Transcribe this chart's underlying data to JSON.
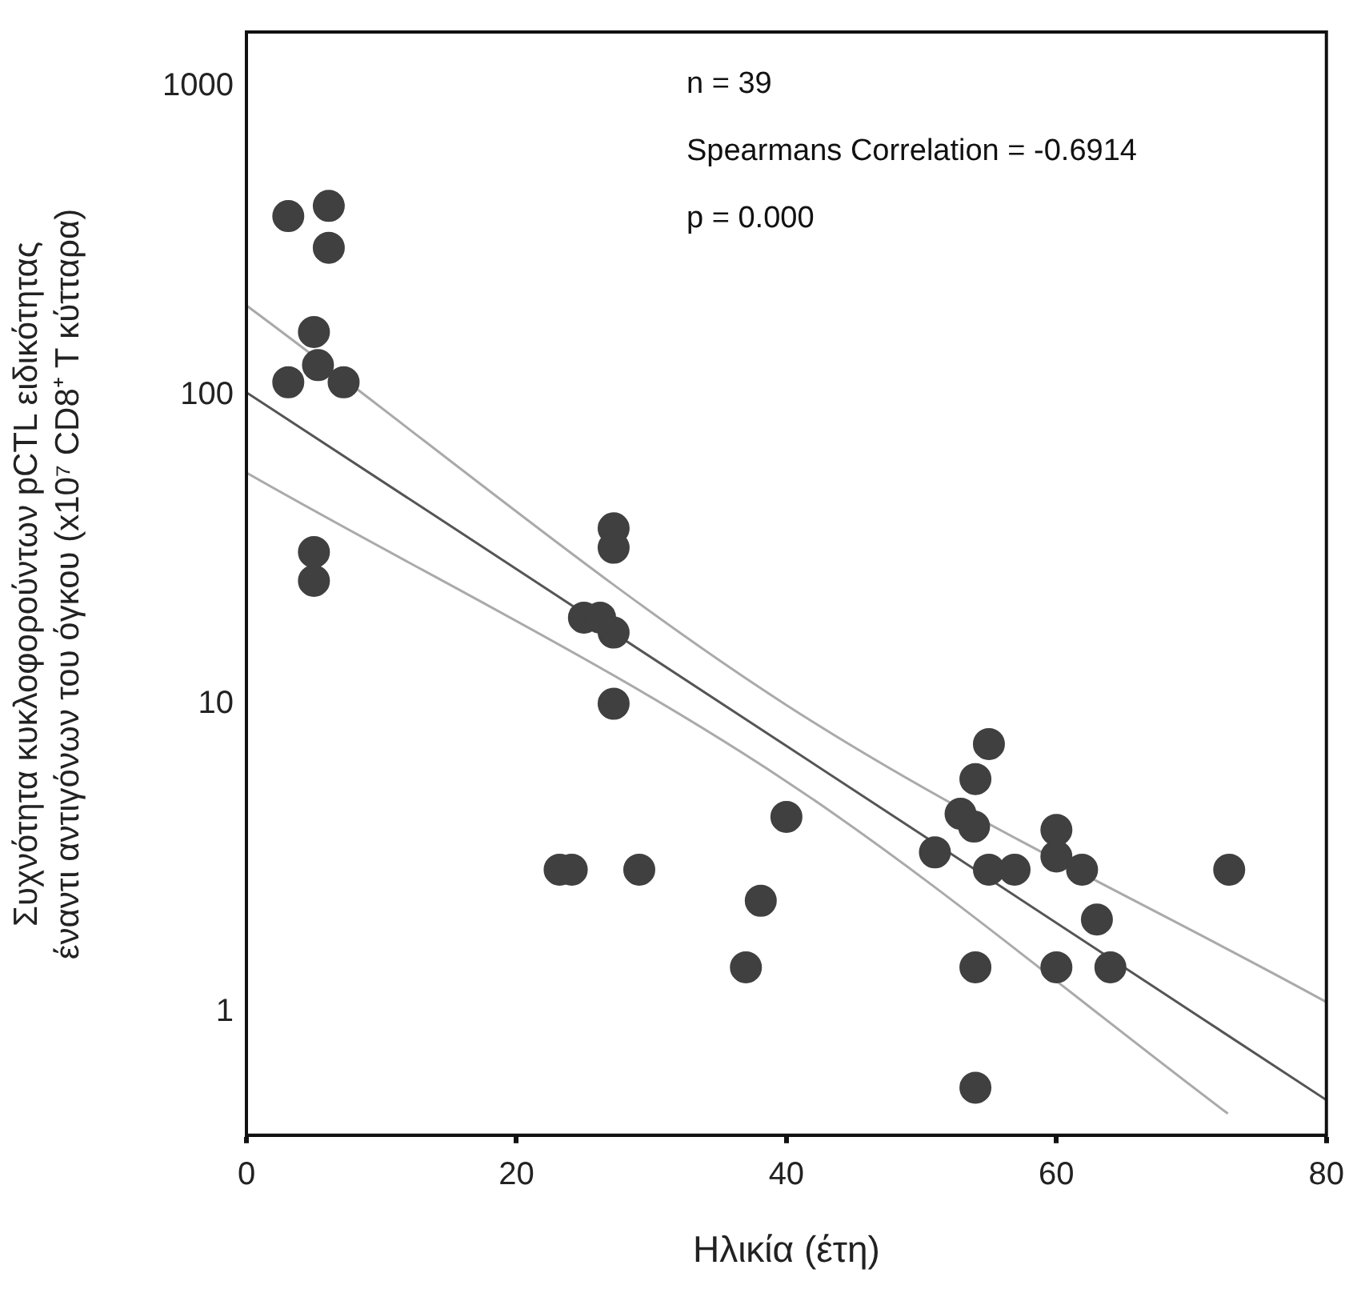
{
  "chart_data": {
    "type": "scatter",
    "xlabel": "Ηλικία (έτη)",
    "ylabel": "Συχνότητα κυκλοφορούντων pCTL ειδικότητας έναντι αντιγόνων του όγκου (x10⁷ CD8⁺ T κύτταρα)",
    "annotations": [
      "n = 39",
      "Spearmans Correlation = -0.6914",
      "p = 0.000"
    ],
    "log": "y",
    "grid": false,
    "legend": false,
    "marker": "circle",
    "xlim": [
      0,
      80
    ],
    "xticks": [
      0,
      20,
      40,
      60,
      80
    ],
    "ylim": [
      0.4,
      1500
    ],
    "yticks": [
      1,
      10,
      100,
      1000
    ],
    "series": [
      {
        "color": "#404040",
        "x": [
          3.1,
          6.1,
          6.1,
          5.0,
          5.3,
          3.1,
          7.2,
          5.0,
          5.0,
          27.2,
          27.2,
          25.0,
          26.2,
          27.2,
          27.2,
          23.2,
          24.1,
          29.1,
          40.0,
          38.1,
          37.0,
          51.0,
          55.0,
          54.0,
          52.9,
          53.9,
          55.0,
          56.9,
          60.0,
          60.0,
          61.9,
          63.0,
          54.0,
          60.0,
          64.0,
          54.0,
          72.8
        ],
        "values": [
          380,
          410,
          300,
          160,
          125,
          110,
          110,
          31,
          25,
          37,
          32,
          19,
          19,
          17,
          10,
          2.9,
          2.9,
          2.9,
          4.3,
          2.3,
          1.4,
          3.3,
          7.4,
          5.7,
          4.4,
          4.0,
          2.9,
          2.9,
          3.9,
          3.2,
          2.9,
          2.0,
          1.4,
          1.4,
          1.4,
          0.57,
          2.9
        ]
      },
      {
        "type": "line",
        "color": "#555555",
        "marker": "none",
        "x": [
          0,
          40,
          80
        ],
        "values": [
          102,
          7.3,
          0.52
        ]
      },
      {
        "type": "line",
        "color": "#aaaaaa",
        "marker": "none",
        "x": [
          0,
          40,
          80
        ],
        "values": [
          195,
          9.9,
          1.08
        ]
      },
      {
        "type": "line",
        "color": "#aaaaaa",
        "marker": "none",
        "x": [
          0,
          40,
          72.7
        ],
        "values": [
          56,
          5.6,
          0.47
        ]
      }
    ]
  }
}
